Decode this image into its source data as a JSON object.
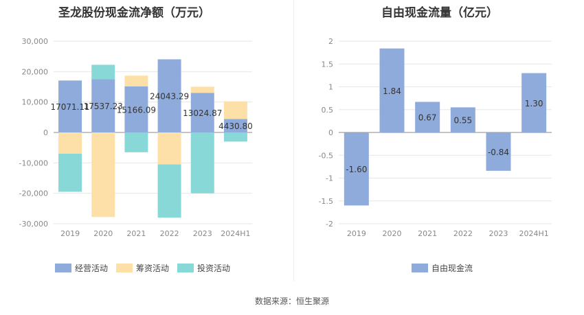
{
  "source": "数据来源：恒生聚源",
  "chart_data": [
    {
      "type": "bar",
      "stacked": true,
      "title": "圣龙股份现金流净额（万元）",
      "categories": [
        "2019",
        "2020",
        "2021",
        "2022",
        "2023",
        "2024H1"
      ],
      "ylim": [
        -30000,
        30000
      ],
      "yticks": [
        30000,
        20000,
        10000,
        0,
        -10000,
        -20000,
        -30000
      ],
      "ytick_labels": [
        "30,000",
        "20,000",
        "10,000",
        "0",
        "-10,000",
        "-20,000",
        "-30,000"
      ],
      "series": [
        {
          "name": "经营活动",
          "color": "#8fabdb",
          "values": [
            17071.11,
            17537.23,
            15166.09,
            24043.29,
            13024.87,
            4430.8
          ]
        },
        {
          "name": "筹资活动",
          "color": "#fde0a7",
          "values": [
            -7000,
            -27800,
            3500,
            -10500,
            2000,
            5800
          ]
        },
        {
          "name": "投资活动",
          "color": "#88d8d8",
          "values": [
            -12500,
            4700,
            -6500,
            -17500,
            -20000,
            -3000
          ]
        }
      ],
      "data_labels": [
        "17071.11",
        "17537.23",
        "15166.09",
        "24043.29",
        "13024.87",
        "4430.80"
      ]
    },
    {
      "type": "bar",
      "title": "自由现金流量（亿元）",
      "categories": [
        "2019",
        "2020",
        "2021",
        "2022",
        "2023",
        "2024H1"
      ],
      "ylim": [
        -2,
        2
      ],
      "yticks": [
        2,
        1.5,
        1,
        0.5,
        0,
        -0.5,
        -1,
        -1.5,
        -2
      ],
      "ytick_labels": [
        "2",
        "1.5",
        "1",
        "0.5",
        "0",
        "-0.5",
        "-1",
        "-1.5",
        "-2"
      ],
      "series": [
        {
          "name": "自由现金流",
          "color": "#8fabdb",
          "values": [
            -1.6,
            1.84,
            0.67,
            0.55,
            -0.84,
            1.3
          ]
        }
      ],
      "data_labels": [
        "-1.60",
        "1.84",
        "0.67",
        "0.55",
        "-0.84",
        "1.30"
      ]
    }
  ]
}
